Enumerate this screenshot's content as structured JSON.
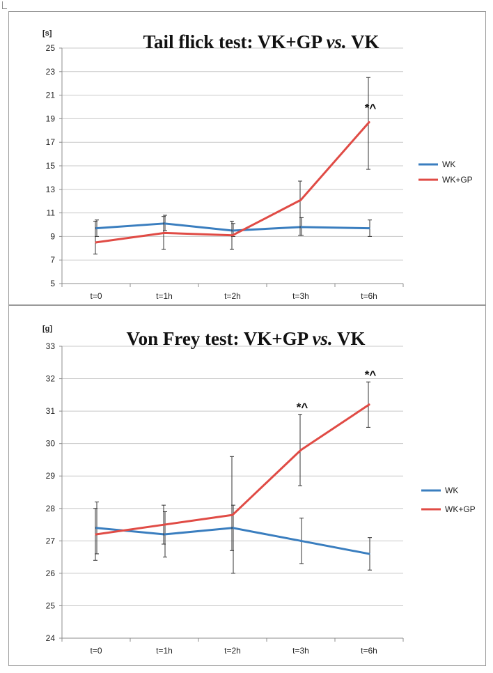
{
  "chart_data": [
    {
      "type": "line",
      "title": "Tail flick test: VK+GP ",
      "title_italic": "vs.",
      "title_end": " VK",
      "unit_label": "[s]",
      "categories": [
        "t=0",
        "t=1h",
        "t=2h",
        "t=3h",
        "t=6h"
      ],
      "ylim": [
        5,
        25
      ],
      "yticks": [
        5,
        7,
        9,
        11,
        13,
        15,
        17,
        19,
        21,
        23,
        25
      ],
      "grid": true,
      "legend_position": "right",
      "series": [
        {
          "name": "WK",
          "color": "#3a7ebf",
          "values": [
            9.7,
            10.1,
            9.5,
            9.8,
            9.7
          ],
          "err_low": [
            9.0,
            9.5,
            9.0,
            9.1,
            9.0
          ],
          "err_high": [
            10.4,
            10.8,
            10.1,
            10.6,
            10.4
          ]
        },
        {
          "name": "WK+GP",
          "color": "#e04b45",
          "values": [
            8.5,
            9.3,
            9.1,
            12.1,
            18.7
          ],
          "err_low": [
            7.5,
            7.9,
            7.9,
            9.1,
            14.7
          ],
          "err_high": [
            10.3,
            10.7,
            10.3,
            13.7,
            22.5
          ]
        }
      ],
      "annotations": [
        {
          "text": "*^",
          "category": "t=6h",
          "y": 19.6
        }
      ]
    },
    {
      "type": "line",
      "title": "Von Frey test: VK+GP ",
      "title_italic": "vs.",
      "title_end": " VK",
      "unit_label": "[g]",
      "categories": [
        "t=0",
        "t=1h",
        "t=2h",
        "t=3h",
        "t=6h"
      ],
      "ylim": [
        24,
        33
      ],
      "yticks": [
        24,
        25,
        26,
        27,
        28,
        29,
        30,
        31,
        32,
        33
      ],
      "grid": true,
      "legend_position": "right",
      "series": [
        {
          "name": "WK",
          "color": "#3a7ebf",
          "values": [
            27.4,
            27.2,
            27.4,
            27.0,
            26.6
          ],
          "err_low": [
            26.6,
            26.5,
            26.0,
            26.3,
            26.1
          ],
          "err_high": [
            28.2,
            27.9,
            28.1,
            27.7,
            27.1
          ]
        },
        {
          "name": "WK+GP",
          "color": "#e04b45",
          "values": [
            27.2,
            27.5,
            27.8,
            29.8,
            31.2
          ],
          "err_low": [
            26.4,
            26.9,
            26.7,
            28.7,
            30.5
          ],
          "err_high": [
            28.0,
            28.1,
            29.6,
            30.9,
            31.9
          ]
        }
      ],
      "annotations": [
        {
          "text": "*^",
          "category": "t=3h",
          "y": 31.0
        },
        {
          "text": "*^",
          "category": "t=6h",
          "y": 32.0
        }
      ]
    }
  ]
}
